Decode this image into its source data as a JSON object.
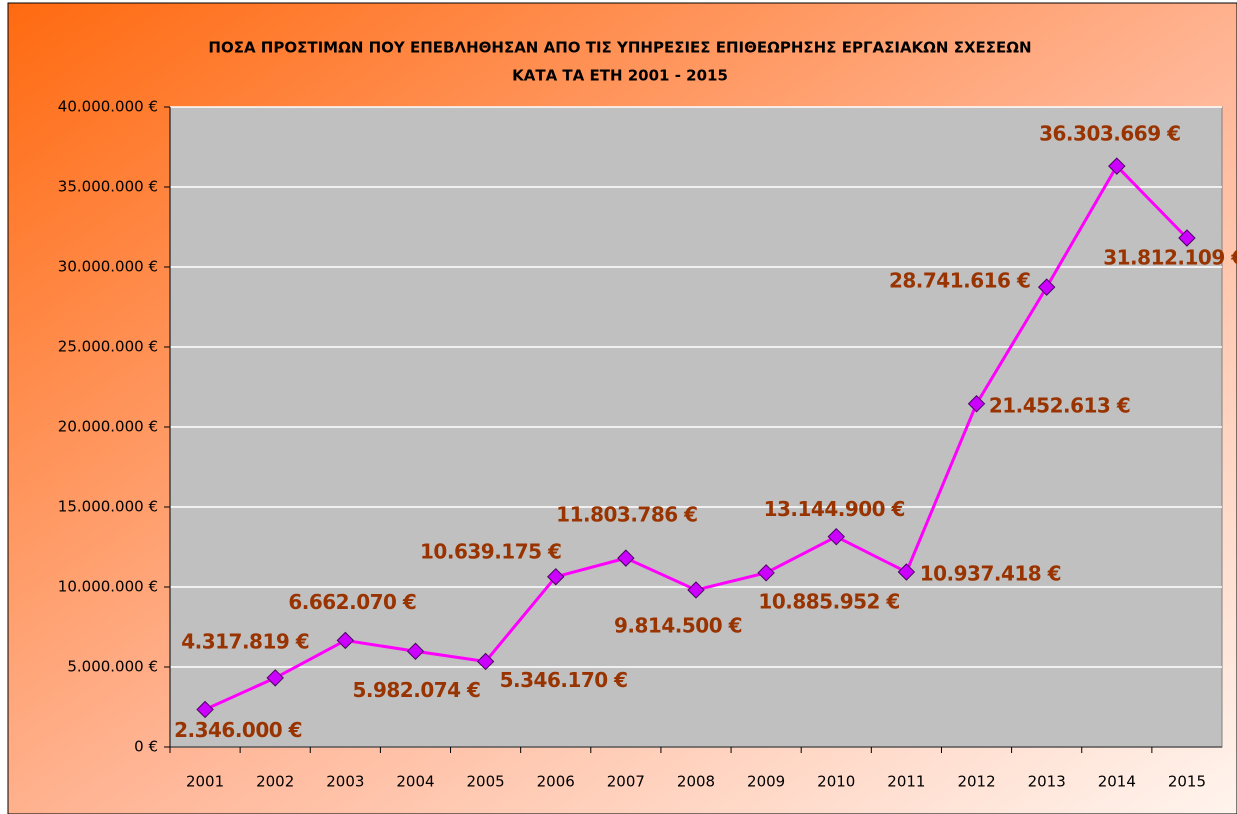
{
  "chart_data": {
    "type": "line",
    "title_lines": [
      "ΠΟΣΑ ΠΡΟΣΤΙΜΩΝ ΠΟΥ ΕΠΕΒΛΗΘΗΣΑΝ ΑΠΟ ΤΙΣ ΥΠΗΡΕΣΙΕΣ ΕΠΙΘΕΩΡΗΣΗΣ ΕΡΓΑΣΙΑΚΩΝ ΣΧΕΣΕΩΝ",
      "ΚΑΤΑ ΤΑ ΕΤΗ 2001 - 2015"
    ],
    "categories": [
      "2001",
      "2002",
      "2003",
      "2004",
      "2005",
      "2006",
      "2007",
      "2008",
      "2009",
      "2010",
      "2011",
      "2012",
      "2013",
      "2014",
      "2015"
    ],
    "values": [
      2346000,
      4317819,
      6662070,
      5982074,
      5346170,
      10639175,
      11803786,
      9814500,
      10885952,
      13144900,
      10937418,
      21452613,
      28741616,
      36303669,
      31812109
    ],
    "value_labels": [
      "2.346.000 €",
      "4.317.819 €",
      "6.662.070 €",
      "5.982.074 €",
      "5.346.170 €",
      "10.639.175 €",
      "11.803.786 €",
      "9.814.500 €",
      "10.885.952 €",
      "13.144.900 €",
      "10.937.418 €",
      "21.452.613 €",
      "28.741.616 €",
      "36.303.669 €",
      "31.812.109 €"
    ],
    "color": "#ff00ff",
    "marker_color": "#cc00ff",
    "ylim": [
      0,
      40000000
    ],
    "yticks": [
      {
        "value": 0,
        "label": "0 €"
      },
      {
        "value": 5000000,
        "label": "5.000.000 €"
      },
      {
        "value": 10000000,
        "label": "10.000.000 €"
      },
      {
        "value": 15000000,
        "label": "15.000.000 €"
      },
      {
        "value": 20000000,
        "label": "20.000.000 €"
      },
      {
        "value": 25000000,
        "label": "25.000.000 €"
      },
      {
        "value": 30000000,
        "label": "30.000.000 €"
      },
      {
        "value": 35000000,
        "label": "35.000.000 €"
      },
      {
        "value": 40000000,
        "label": "40.000.000 €"
      }
    ],
    "grid": true
  }
}
